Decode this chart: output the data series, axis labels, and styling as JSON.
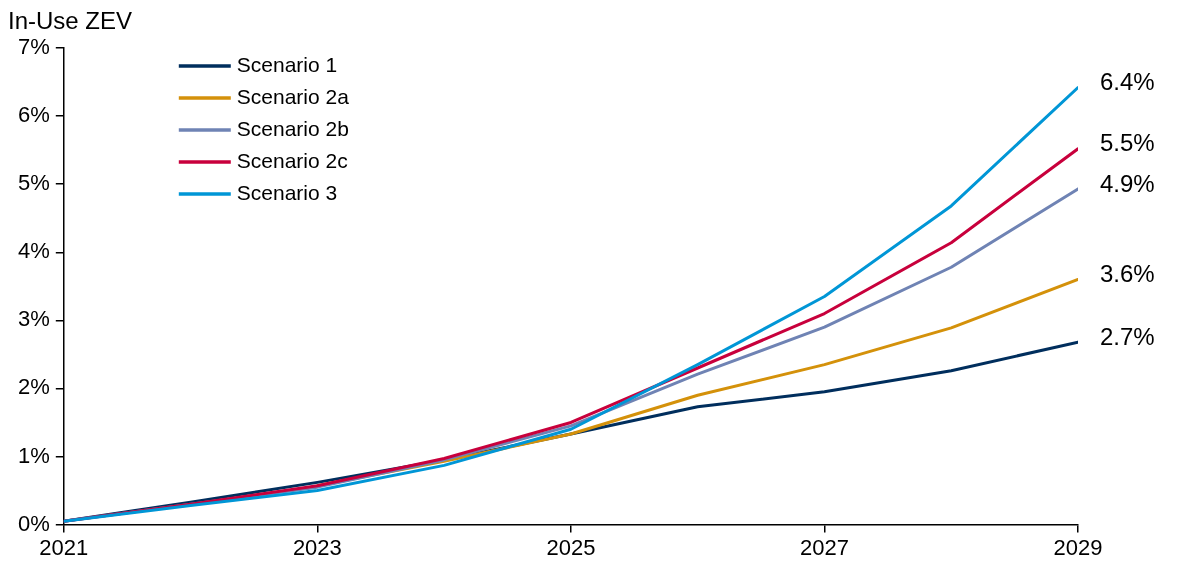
{
  "chart_data": {
    "type": "line",
    "ylabel": "In-Use ZEV",
    "x": [
      2021,
      2022,
      2023,
      2024,
      2025,
      2026,
      2027,
      2028,
      2029
    ],
    "xlim": [
      2021,
      2029
    ],
    "xticks": [
      2021,
      2023,
      2025,
      2027,
      2029
    ],
    "ylim": [
      0,
      7
    ],
    "yticks": [
      {
        "value": 0,
        "label": "0%"
      },
      {
        "value": 1,
        "label": "1%"
      },
      {
        "value": 2,
        "label": "2%"
      },
      {
        "value": 3,
        "label": "3%"
      },
      {
        "value": 4,
        "label": "4%"
      },
      {
        "value": 5,
        "label": "5%"
      },
      {
        "value": 6,
        "label": "6%"
      },
      {
        "value": 7,
        "label": "7%"
      }
    ],
    "grid": false,
    "legend": "top left",
    "marker": "none",
    "line_style": "solid",
    "series": [
      {
        "name": "Scenario 1",
        "color": "#002e5d",
        "values": [
          0.05,
          0.33,
          0.62,
          0.95,
          1.33,
          1.73,
          1.95,
          2.26,
          2.68
        ],
        "value_labels": [
          null,
          null,
          null,
          null,
          null,
          null,
          null,
          null,
          "2.7%"
        ]
      },
      {
        "name": "Scenario 2a",
        "color": "#d4910a",
        "values": [
          null,
          null,
          0.57,
          0.93,
          1.33,
          1.9,
          2.35,
          2.89,
          3.6
        ],
        "value_labels": [
          null,
          null,
          null,
          null,
          null,
          null,
          null,
          null,
          "3.6%"
        ]
      },
      {
        "name": "Scenario 2b",
        "color": "#6f83b4",
        "values": [
          0.05,
          0.3,
          0.55,
          0.95,
          1.45,
          2.21,
          2.9,
          3.78,
          4.93
        ],
        "value_labels": [
          null,
          null,
          null,
          null,
          null,
          null,
          null,
          null,
          "4.9%"
        ]
      },
      {
        "name": "Scenario 2c",
        "color": "#c8003c",
        "values": [
          0.05,
          0.3,
          0.57,
          0.97,
          1.5,
          2.3,
          3.1,
          4.14,
          5.52
        ],
        "value_labels": [
          null,
          null,
          null,
          null,
          null,
          null,
          null,
          null,
          "5.5%"
        ]
      },
      {
        "name": "Scenario 3",
        "color": "#0096d6",
        "values": [
          0.05,
          0.28,
          0.5,
          0.87,
          1.4,
          2.35,
          3.35,
          4.68,
          6.42
        ],
        "value_labels": [
          null,
          null,
          null,
          null,
          null,
          null,
          null,
          null,
          "6.4%"
        ]
      }
    ]
  }
}
